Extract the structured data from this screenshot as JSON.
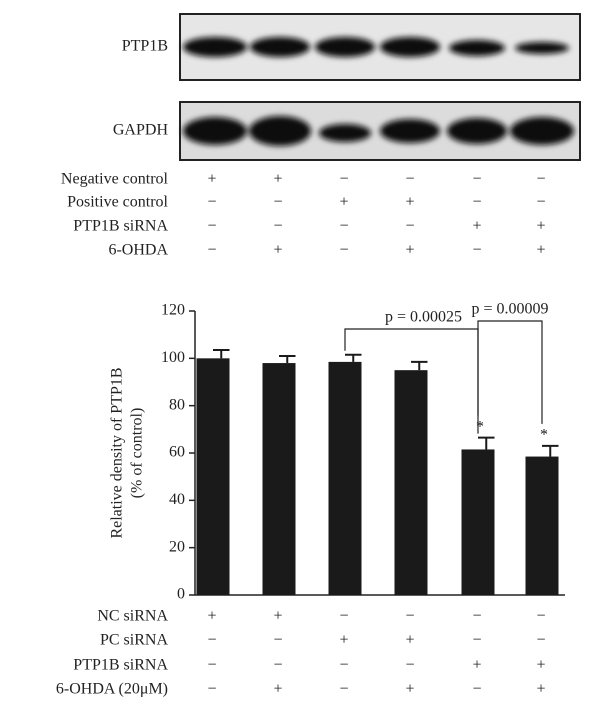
{
  "blot": {
    "lanes": [
      "PTP1B",
      "GAPDH"
    ]
  },
  "top_conditions": {
    "rows": [
      {
        "label": "Negative control",
        "signs": [
          "+",
          "+",
          "−",
          "−",
          "−",
          "−"
        ]
      },
      {
        "label": "Positive control",
        "signs": [
          "−",
          "−",
          "+",
          "+",
          "−",
          "−"
        ]
      },
      {
        "label": "PTP1B siRNA",
        "signs": [
          "−",
          "−",
          "−",
          "−",
          "+",
          "+"
        ]
      },
      {
        "label": "6-OHDA",
        "signs": [
          "−",
          "+",
          "−",
          "+",
          "−",
          "+"
        ]
      }
    ]
  },
  "chart_data": {
    "type": "bar",
    "ylabel": [
      "Relative density of PTP1B",
      "(% of control)"
    ],
    "values": [
      100,
      98,
      98.5,
      95,
      61.5,
      58.5
    ],
    "errors": [
      3.5,
      3,
      3,
      3.5,
      5,
      4.5
    ],
    "significance": [
      null,
      null,
      null,
      null,
      "*",
      "*"
    ],
    "annotations": [
      "p = 0.00025",
      "p = 0.00009"
    ],
    "color": "#1a1a1a",
    "ylim": [
      0,
      120
    ],
    "yticks": [
      0,
      20,
      40,
      60,
      80,
      100,
      120
    ]
  },
  "bottom_conditions": {
    "rows": [
      {
        "label": "NC siRNA",
        "signs": [
          "+",
          "+",
          "−",
          "−",
          "−",
          "−"
        ]
      },
      {
        "label": "PC siRNA",
        "signs": [
          "−",
          "−",
          "+",
          "+",
          "−",
          "−"
        ]
      },
      {
        "label": "PTP1B siRNA",
        "signs": [
          "−",
          "−",
          "−",
          "−",
          "+",
          "+"
        ]
      },
      {
        "label": "6-OHDA (20μM)",
        "signs": [
          "−",
          "+",
          "−",
          "+",
          "−",
          "+"
        ]
      }
    ]
  }
}
